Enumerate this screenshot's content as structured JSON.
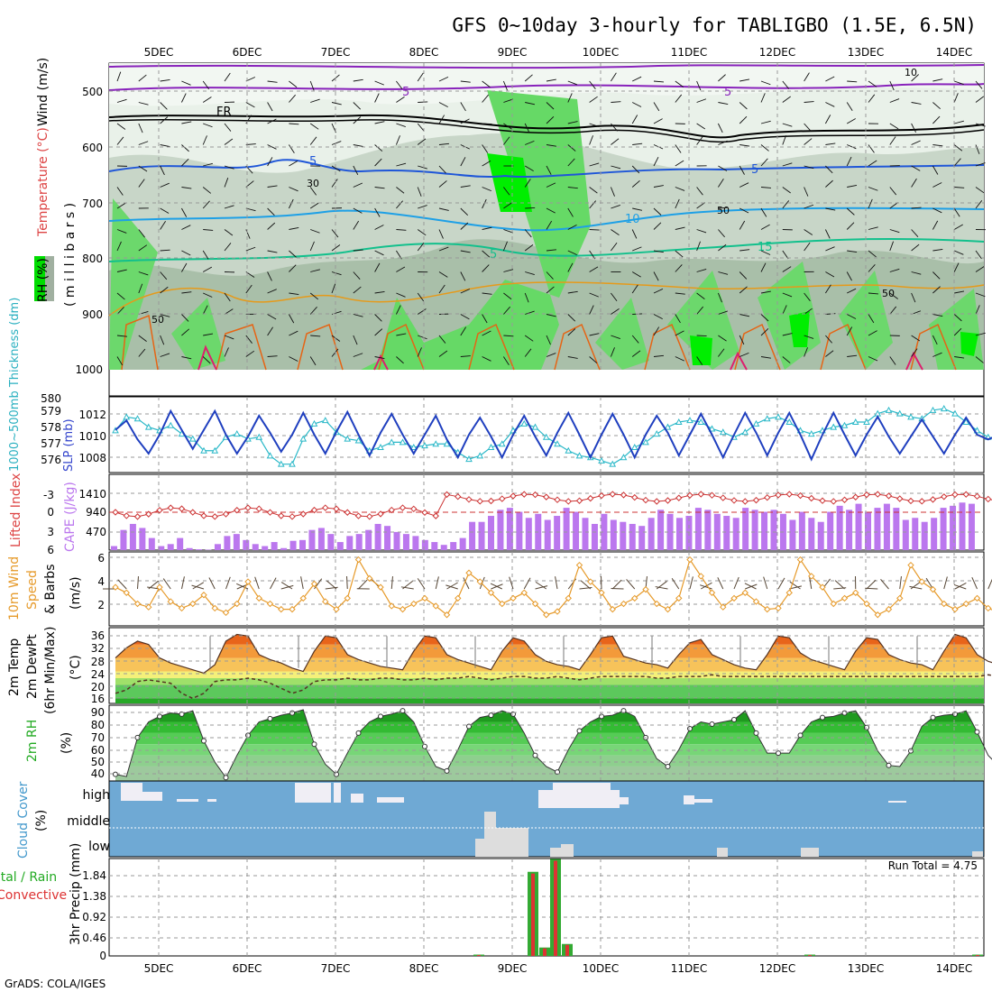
{
  "title": "GFS 0~10day 3-hourly for TABLIGBO (1.5E, 6.5N)",
  "footer": "GrADS: COLA/IGES",
  "dates": [
    "5DEC",
    "6DEC",
    "7DEC",
    "8DEC",
    "9DEC",
    "10DEC",
    "11DEC",
    "12DEC",
    "13DEC",
    "14DEC"
  ],
  "colors": {
    "rh_light": "#e6f0e6",
    "rh_mid": "#c7d6c7",
    "rh_dark": "#a9bda9",
    "rh_green": "#66d966",
    "rh_bright": "#00e600",
    "t_purple": "#8822bb",
    "t_black": "#000000",
    "t_blue": "#1f56d8",
    "t_lightblue": "#1ea0e6",
    "t_teal": "#12c08c",
    "t_orange": "#e69a1a",
    "t_darkorange": "#e66414",
    "t_magenta": "#dd1f6e",
    "slp": "#1f3fbf",
    "thickness": "#2ab8c8",
    "lifted": "#cc3333",
    "cape": "#bb77ee",
    "wind": "#e69a2a",
    "cloud_bg": "#6fa9d4",
    "cloud": "#f0eef5",
    "precip_green": "#33aa33",
    "precip_red": "#dd3333"
  },
  "panels": {
    "pressure": {
      "ylabel_rh": "RH (%)",
      "ylabel_temp": "Temperature (°C)",
      "ylabel_wind": "Wind (m/s)",
      "ylabel_units": "( m i l l i b a r s )",
      "ticks": [
        "500",
        "600",
        "700",
        "800",
        "900",
        "1000"
      ],
      "labels": [
        {
          "text": "FR",
          "color": "#000000"
        },
        {
          "text": "5",
          "color": "#8822bb"
        },
        {
          "text": "5",
          "color": "#8822bb"
        },
        {
          "text": "5",
          "color": "#1f56d8"
        },
        {
          "text": "5",
          "color": "#1f56d8"
        },
        {
          "text": "10",
          "color": "#1ea0e6"
        },
        {
          "text": "15",
          "color": "#12c08c"
        },
        {
          "text": "5",
          "color": "#12c08c"
        },
        {
          "text": "10",
          "color": "#888888"
        },
        {
          "text": "30",
          "color": "#888888"
        },
        {
          "text": "50",
          "color": "#888888"
        },
        {
          "text": "50",
          "color": "#888888"
        },
        {
          "text": "50",
          "color": "#888888"
        }
      ]
    },
    "slp": {
      "ylabel_thick": "1000~500mb Thickness (dm)",
      "ylabel_slp": "SLP (mb)",
      "left_ticks": [
        "580",
        "579",
        "578",
        "577",
        "576"
      ],
      "right_ticks": [
        "1012",
        "1010",
        "1008"
      ]
    },
    "cape": {
      "ylabel_li": "Lifted Index",
      "ylabel_cape": "CAPE (J/kg)",
      "left_ticks": [
        "-3",
        "0",
        "3",
        "6"
      ],
      "right_ticks": [
        "1410",
        "940",
        "470"
      ]
    },
    "wind10": {
      "ylabel1": "10m Wind",
      "ylabel2": "Speed",
      "ylabel3": "& Barbs",
      "units": "(m/s)",
      "ticks": [
        "6",
        "4",
        "2"
      ]
    },
    "temp2m": {
      "ylabel1": "2m Temp",
      "ylabel2": "2m DewPt",
      "ylabel3": "(6hr Min/Max)",
      "units": "(°C)",
      "ticks": [
        "36",
        "32",
        "28",
        "24",
        "20",
        "16"
      ]
    },
    "rh2m": {
      "ylabel": "2m RH",
      "units": "(%)",
      "ticks": [
        "90",
        "80",
        "70",
        "60",
        "50",
        "40"
      ]
    },
    "cloud": {
      "ylabel": "Cloud Cover",
      "units": "(%)",
      "ticks": [
        "high",
        "middle",
        "low"
      ]
    },
    "precip": {
      "ylabel1": "Total / Rain",
      "ylabel2": "Convective",
      "ylabel3": "3hr Precip (mm)",
      "ticks": [
        "1.84",
        "1.38",
        "0.92",
        "0.46",
        "0"
      ],
      "run_total": "Run Total = 4.75"
    }
  },
  "chart_data": [
    {
      "type": "line",
      "title": "SLP (mb)",
      "x_step_hours": 3,
      "series": [
        {
          "name": "SLP (mb)",
          "values": [
            1010.5,
            1011.5,
            1009.5,
            1008.0,
            1010.0,
            1012.5,
            1010.5,
            1008.5,
            1010.5,
            1012.5,
            1010.0,
            1008.0,
            1009.8,
            1012.0,
            1010.2,
            1008.2,
            1010.0,
            1012.3,
            1010.0,
            1008.0,
            1010.3,
            1012.4,
            1010.0,
            1007.8,
            1010.2,
            1012.2,
            1010.0,
            1008.0,
            1010.0,
            1012.0,
            1009.5,
            1007.6,
            1010.0,
            1011.8,
            1009.8,
            1007.6,
            1010.0,
            1012.0,
            1009.8,
            1007.8,
            1010.2,
            1012.3,
            1010.0,
            1007.6,
            1010.0,
            1012.2,
            1010.0,
            1007.6,
            1010.0,
            1012.0,
            1010.2,
            1007.8,
            1010.0,
            1012.2,
            1010.0,
            1007.6,
            1010.0,
            1012.3,
            1010.2,
            1007.8,
            1010.2,
            1012.3,
            1010.0,
            1007.4,
            1010.0,
            1012.3,
            1010.0,
            1007.8,
            1010.0,
            1011.9,
            1009.8,
            1008.0,
            1009.8,
            1011.6,
            1009.8,
            1008.0,
            1010.0,
            1011.8,
            1010.0,
            1009.5,
            1010.0
          ]
        }
      ],
      "ylim": [
        1006,
        1014
      ]
    },
    {
      "type": "line",
      "title": "1000~500mb Thickness (dm)",
      "x_step_hours": 3,
      "series": [
        {
          "name": "Thickness (dm)",
          "values": [
            578.0,
            578.8,
            578.7,
            578.2,
            578.0,
            578.3,
            577.8,
            577.5,
            576.8,
            576.8,
            577.6,
            577.8,
            577.5,
            577.6,
            576.5,
            576.0,
            576.0,
            577.5,
            578.4,
            578.6,
            577.9,
            577.5,
            577.4,
            576.8,
            577.0,
            577.3,
            577.3,
            577.0,
            577.1,
            577.2,
            577.2,
            576.7,
            576.3,
            576.5,
            577.0,
            577.2,
            578.0,
            578.4,
            578.2,
            577.6,
            577.2,
            576.8,
            576.5,
            576.4,
            576.2,
            576.0,
            576.4,
            577.0,
            577.3,
            577.8,
            578.2,
            578.5,
            578.6,
            578.5,
            578.1,
            577.9,
            577.6,
            577.9,
            578.4,
            578.7,
            578.8,
            578.5,
            578.0,
            577.8,
            578.0,
            578.2,
            578.3,
            578.5,
            578.5,
            579.0,
            579.2,
            579.0,
            578.8,
            578.7,
            579.2,
            579.3,
            579.0,
            578.5,
            578.0,
            577.6,
            577.5
          ]
        }
      ],
      "ylim": [
        575.5,
        580
      ]
    },
    {
      "type": "bar",
      "title": "CAPE (J/kg)",
      "x_step_hours": 3,
      "values": [
        100,
        500,
        650,
        550,
        300,
        100,
        150,
        300,
        50,
        20,
        10,
        150,
        350,
        400,
        250,
        150,
        100,
        200,
        50,
        230,
        250,
        500,
        550,
        400,
        200,
        350,
        400,
        500,
        650,
        600,
        450,
        400,
        350,
        250,
        200,
        130,
        200,
        300,
        700,
        700,
        850,
        1000,
        1050,
        950,
        800,
        900,
        750,
        850,
        1050,
        950,
        800,
        650,
        900,
        750,
        700,
        650,
        600,
        800,
        1000,
        900,
        800,
        850,
        1050,
        1000,
        900,
        850,
        800,
        1050,
        1000,
        950,
        1000,
        900,
        750,
        950,
        800,
        700,
        950,
        1100,
        1000,
        1150,
        950,
        1050,
        1150,
        1050,
        750,
        800,
        700,
        800,
        1050,
        1100,
        1180,
        1150
      ],
      "ylim": [
        0,
        1880
      ]
    },
    {
      "type": "line",
      "title": "10m Wind Speed (m/s)",
      "x_step_hours": 3,
      "series": [
        {
          "name": "10m Wind Speed",
          "values": [
            3.5,
            3.0,
            2.0,
            1.7,
            3.5,
            2.2,
            1.6,
            2.0,
            2.8,
            1.6,
            1.2,
            2.0,
            4.0,
            2.5,
            2.0,
            1.5,
            1.5,
            2.5,
            3.8,
            2.2,
            1.5,
            2.5,
            6.0,
            4.3,
            3.5,
            1.8,
            1.5,
            2.0,
            2.5,
            1.8,
            1.0,
            2.5,
            4.8,
            4.0,
            3.0,
            2.0,
            2.5,
            3.0,
            2.0,
            1.0,
            1.3,
            2.5,
            5.5,
            4.0,
            3.0,
            1.5,
            2.0,
            2.5,
            3.3,
            2.0,
            1.5,
            2.5,
            6.0,
            4.5,
            3.0,
            1.7,
            2.5,
            3.0,
            2.2,
            1.5,
            1.6,
            3.0,
            6.0,
            4.5,
            3.5,
            2.0,
            2.5,
            3.0,
            2.0,
            1.0,
            1.5,
            2.5,
            5.5,
            4.0,
            3.3,
            2.0,
            1.5,
            2.0,
            2.5,
            1.6,
            1.2,
            3.0,
            6.2,
            4.4,
            3.5,
            2.0,
            2.5,
            3.0,
            2.0,
            1.5,
            1.5
          ]
        }
      ],
      "ylim": [
        0,
        6.7
      ]
    },
    {
      "type": "area",
      "title": "2m Temp / 2m DewPt (°C)",
      "x_step_hours": 3,
      "series": [
        {
          "name": "2m Temp",
          "values": [
            28.0,
            31.0,
            33.0,
            32.0,
            28.0,
            26.5,
            25.5,
            24.5,
            23.5,
            26.0,
            33.0,
            35.0,
            34.5,
            29.0,
            27.5,
            26.5,
            25.0,
            24.0,
            30.0,
            34.5,
            34.0,
            29.0,
            27.5,
            26.5,
            25.5,
            25.0,
            24.5,
            30.0,
            34.5,
            34.0,
            29.0,
            27.5,
            26.5,
            25.5,
            24.5,
            30.0,
            34.0,
            33.0,
            29.0,
            27.0,
            26.0,
            25.5,
            24.5,
            29.0,
            34.0,
            34.5,
            28.5,
            27.5,
            26.5,
            26.0,
            25.0,
            29.0,
            32.5,
            33.5,
            29.0,
            27.5,
            26.0,
            25.0,
            24.5,
            29.0,
            34.5,
            34.0,
            29.5,
            27.5,
            26.5,
            25.5,
            24.5,
            30.0,
            34.0,
            33.5,
            29.0,
            27.5,
            26.5,
            26.0,
            24.5,
            30.0,
            35.0,
            34.0,
            29.0,
            27.0,
            26.0,
            25.5,
            24.5,
            30.5,
            34.5,
            33.5,
            28.5,
            27.5,
            26.5,
            25.5,
            24.5
          ]
        },
        {
          "name": "2m DewPt",
          "values": [
            17.5,
            18.5,
            21.0,
            21.5,
            21.0,
            20.5,
            17.5,
            16.0,
            17.5,
            21.0,
            21.5,
            21.5,
            22.0,
            21.5,
            20.5,
            19.0,
            17.5,
            18.5,
            21.0,
            21.5,
            21.5,
            22.0,
            21.5,
            21.5,
            22.0,
            22.0,
            21.5,
            21.5,
            22.0,
            21.5,
            22.0,
            22.0,
            22.5,
            22.0,
            21.5,
            22.0,
            22.5,
            22.5,
            22.0,
            22.0,
            22.5,
            22.0,
            21.5,
            22.0,
            22.5,
            22.5,
            22.5,
            22.5,
            22.5,
            22.0,
            22.0,
            22.5,
            22.5,
            22.5,
            23.0,
            22.5,
            22.5,
            22.5,
            22.5,
            22.5,
            22.5,
            22.5,
            22.5,
            22.5,
            22.5,
            22.5,
            22.5,
            22.5,
            22.5,
            22.5,
            22.5,
            22.5,
            22.5,
            22.5,
            22.5,
            22.5,
            22.5,
            22.5,
            22.5,
            23.0,
            22.5,
            22.5,
            22.5,
            22.5,
            22.5,
            22.5,
            22.5,
            23.0,
            22.5,
            22.5,
            22.5
          ]
        }
      ],
      "ylim": [
        14.5,
        37
      ]
    },
    {
      "type": "area",
      "title": "2m RH (%)",
      "x_step_hours": 3,
      "series": [
        {
          "name": "2m RH",
          "values": [
            33,
            31,
            66,
            80,
            85,
            88,
            87,
            90,
            63,
            44,
            30,
            50,
            68,
            80,
            83,
            86,
            88,
            91,
            60,
            42,
            33,
            52,
            70,
            80,
            85,
            87,
            90,
            80,
            58,
            40,
            36,
            55,
            76,
            84,
            86,
            90,
            87,
            70,
            50,
            40,
            35,
            55,
            72,
            80,
            85,
            86,
            90,
            85,
            66,
            47,
            40,
            55,
            74,
            80,
            78,
            80,
            82,
            90,
            70,
            52,
            52,
            52,
            68,
            80,
            84,
            85,
            88,
            90,
            75,
            54,
            41,
            40,
            54,
            76,
            84,
            86,
            87,
            90,
            71,
            50,
            40,
            50,
            72,
            80,
            84,
            87,
            88,
            90,
            68,
            52,
            40,
            55,
            70,
            80,
            84,
            88,
            91
          ]
        }
      ],
      "ylim": [
        27,
        95
      ]
    },
    {
      "type": "bar",
      "title": "3hr Precip (mm)",
      "x_step_hours": 3,
      "categories": [
        "8DEC 15Z",
        "9DEC 06Z",
        "9DEC 09Z",
        "9DEC 12Z",
        "9DEC 15Z",
        "12DEC 09Z",
        "14DEC 06Z"
      ],
      "series": [
        {
          "name": "Total",
          "values": [
            0.03,
            1.9,
            0.19,
            2.19,
            0.27,
            0.03,
            0.03
          ]
        },
        {
          "name": "Convective",
          "values": [
            0.02,
            1.86,
            0.17,
            2.15,
            0.25,
            0.02,
            0.02
          ]
        }
      ],
      "ylim": [
        0,
        2.2
      ]
    }
  ]
}
